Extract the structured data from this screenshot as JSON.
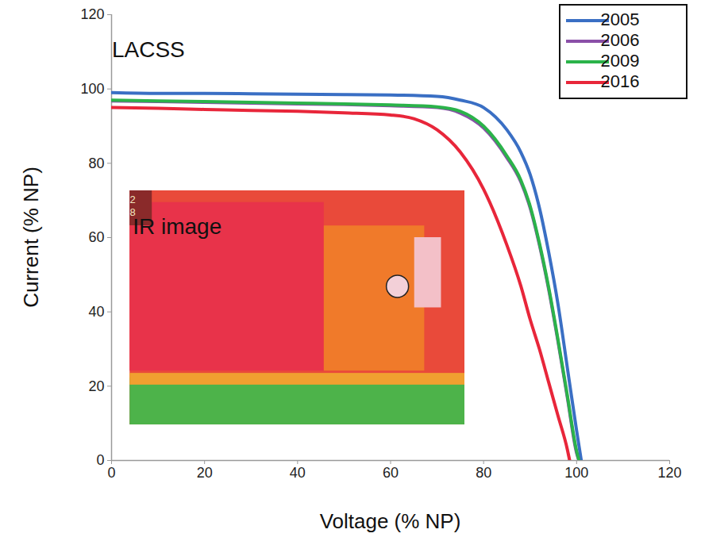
{
  "chart_data": {
    "type": "line",
    "x_label": "Voltage (% NP)",
    "y_label": "Current (% NP)",
    "xlim": [
      0,
      120
    ],
    "ylim": [
      0,
      120
    ],
    "xticks": [
      0,
      20,
      40,
      60,
      80,
      100,
      120
    ],
    "yticks": [
      0,
      20,
      40,
      60,
      80,
      100,
      120
    ],
    "grid": false,
    "legend": "top-right",
    "annotations": [
      {
        "text": "LACSS",
        "x": 8,
        "y": 110
      }
    ],
    "inset": {
      "title": "IR image",
      "scale_labels": [
        "2",
        "8"
      ]
    },
    "series": [
      {
        "name": "2005",
        "color": "#3a6fc4",
        "x": [
          0,
          10,
          20,
          30,
          40,
          50,
          60,
          70,
          75,
          80,
          85,
          88,
          90,
          92,
          94,
          96,
          98,
          100,
          101
        ],
        "values": [
          99,
          98.8,
          98.8,
          98.7,
          98.6,
          98.5,
          98.4,
          98,
          97,
          95,
          89,
          83,
          77,
          68,
          56,
          42,
          25,
          8,
          0
        ]
      },
      {
        "name": "2006",
        "color": "#8a4fa8",
        "x": [
          0,
          10,
          20,
          30,
          40,
          50,
          60,
          70,
          75,
          80,
          85,
          88,
          90,
          92,
          94,
          96,
          98,
          100,
          100.5
        ],
        "values": [
          96.8,
          96.6,
          96.4,
          96.2,
          96,
          95.8,
          95.5,
          95,
          93.5,
          89.5,
          81.5,
          75,
          68,
          58,
          46,
          32,
          17,
          2,
          0
        ]
      },
      {
        "name": "2009",
        "color": "#2bb34a",
        "x": [
          0,
          10,
          20,
          30,
          40,
          50,
          60,
          70,
          75,
          80,
          85,
          88,
          90,
          92,
          94,
          96,
          98,
          100,
          100.5
        ],
        "values": [
          97,
          96.8,
          96.6,
          96.4,
          96.2,
          96,
          95.7,
          95.2,
          94,
          90,
          82,
          75.5,
          68.5,
          58.5,
          46.5,
          32.5,
          17.5,
          2.5,
          0
        ]
      },
      {
        "name": "2016",
        "color": "#e8263a",
        "x": [
          0,
          10,
          20,
          30,
          40,
          50,
          60,
          65,
          70,
          75,
          80,
          85,
          88,
          90,
          92,
          94,
          96,
          98,
          98.5
        ],
        "values": [
          95,
          94.8,
          94.5,
          94.2,
          94,
          93.6,
          93,
          92,
          89,
          83,
          73,
          58,
          47,
          38,
          30,
          21,
          12,
          3,
          0
        ]
      }
    ]
  }
}
